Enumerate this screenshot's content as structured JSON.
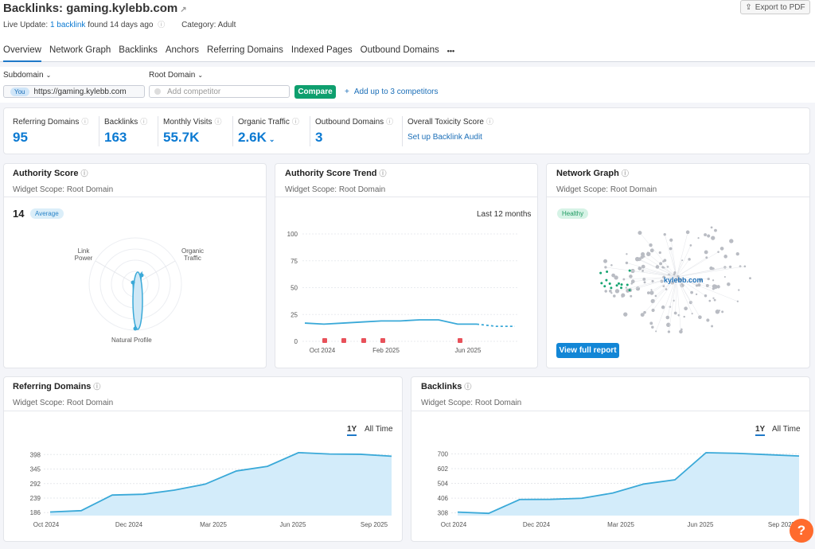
{
  "header": {
    "title_prefix": "Backlinks:",
    "domain": "gaming.kylebb.com",
    "export_label": "Export to PDF",
    "live_prefix": "Live Update:",
    "live_link": "1 backlink",
    "live_suffix": "found 14 days ago",
    "category": "Category: Adult"
  },
  "tabs": [
    "Overview",
    "Network Graph",
    "Backlinks",
    "Anchors",
    "Referring Domains",
    "Indexed Pages",
    "Outbound Domains",
    "•••"
  ],
  "filters": {
    "subdomain_label": "Subdomain",
    "rootdomain_label": "Root Domain",
    "you_badge": "You",
    "you_value": "https://gaming.kylebb.com",
    "competitor_placeholder": "Add competitor",
    "compare_label": "Compare",
    "add_competitors": "Add up to 3 competitors"
  },
  "metrics": [
    {
      "label": "Referring Domains",
      "value": "95"
    },
    {
      "label": "Backlinks",
      "value": "163"
    },
    {
      "label": "Monthly Visits",
      "value": "55.7K"
    },
    {
      "label": "Organic Traffic",
      "value": "2.6K"
    },
    {
      "label": "Outbound Domains",
      "value": "3"
    },
    {
      "label": "Overall Toxicity Score",
      "value": "Set up Backlink Audit"
    }
  ],
  "authority": {
    "title": "Authority Score",
    "scope": "Widget Scope: Root Domain",
    "score": "14",
    "badge": "Average",
    "axis_link": "Link Power",
    "axis_organic": "Organic Traffic",
    "axis_natural": "Natural Profile"
  },
  "trend": {
    "title": "Authority Score Trend",
    "scope": "Widget Scope: Root Domain",
    "period": "Last 12 months"
  },
  "network": {
    "title": "Network Graph",
    "scope": "Widget Scope: Root Domain",
    "badge": "Healthy",
    "center_label": "kylebb.com",
    "button": "View full report"
  },
  "refdomains": {
    "title": "Referring Domains",
    "scope": "Widget Scope: Root Domain",
    "range_1y": "1Y",
    "range_all": "All Time"
  },
  "backlinks_widget": {
    "title": "Backlinks",
    "scope": "Widget Scope: Root Domain",
    "range_1y": "1Y",
    "range_all": "All Time"
  },
  "help_label": "?",
  "colors": {
    "accent": "#0c7ad2",
    "green": "#0e9f6e",
    "line": "#3aa9d8",
    "area": "#d3ecfa"
  },
  "chart_data": [
    {
      "type": "line",
      "name": "authority-score-trend",
      "x_ticks": [
        "Oct 2024",
        "Feb 2025",
        "Jun 2025"
      ],
      "y_ticks": [
        0,
        25,
        50,
        75,
        100
      ],
      "ylim": [
        0,
        100
      ],
      "values": [
        17,
        16,
        17,
        18,
        19,
        19,
        20,
        20,
        16,
        16,
        14,
        14
      ],
      "dashed_tail_points": 2,
      "grid": true
    },
    {
      "type": "area",
      "name": "referring-domains",
      "x_ticks": [
        "Oct 2024",
        "Dec 2024",
        "Mar 2025",
        "Jun 2025",
        "Sep 2025"
      ],
      "y_ticks": [
        186,
        239,
        292,
        345,
        398
      ],
      "ylim": [
        175,
        425
      ],
      "values": [
        188,
        193,
        250,
        253,
        268,
        290,
        338,
        355,
        405,
        400,
        399,
        392
      ],
      "grid": true
    },
    {
      "type": "area",
      "name": "backlinks",
      "x_ticks": [
        "Oct 2024",
        "Dec 2024",
        "Mar 2025",
        "Jun 2025",
        "Sep 2025"
      ],
      "y_ticks": [
        308,
        406,
        504,
        602,
        700
      ],
      "ylim": [
        290,
        745
      ],
      "values": [
        313,
        305,
        397,
        398,
        405,
        440,
        500,
        528,
        708,
        704,
        695,
        686
      ],
      "grid": true
    }
  ]
}
